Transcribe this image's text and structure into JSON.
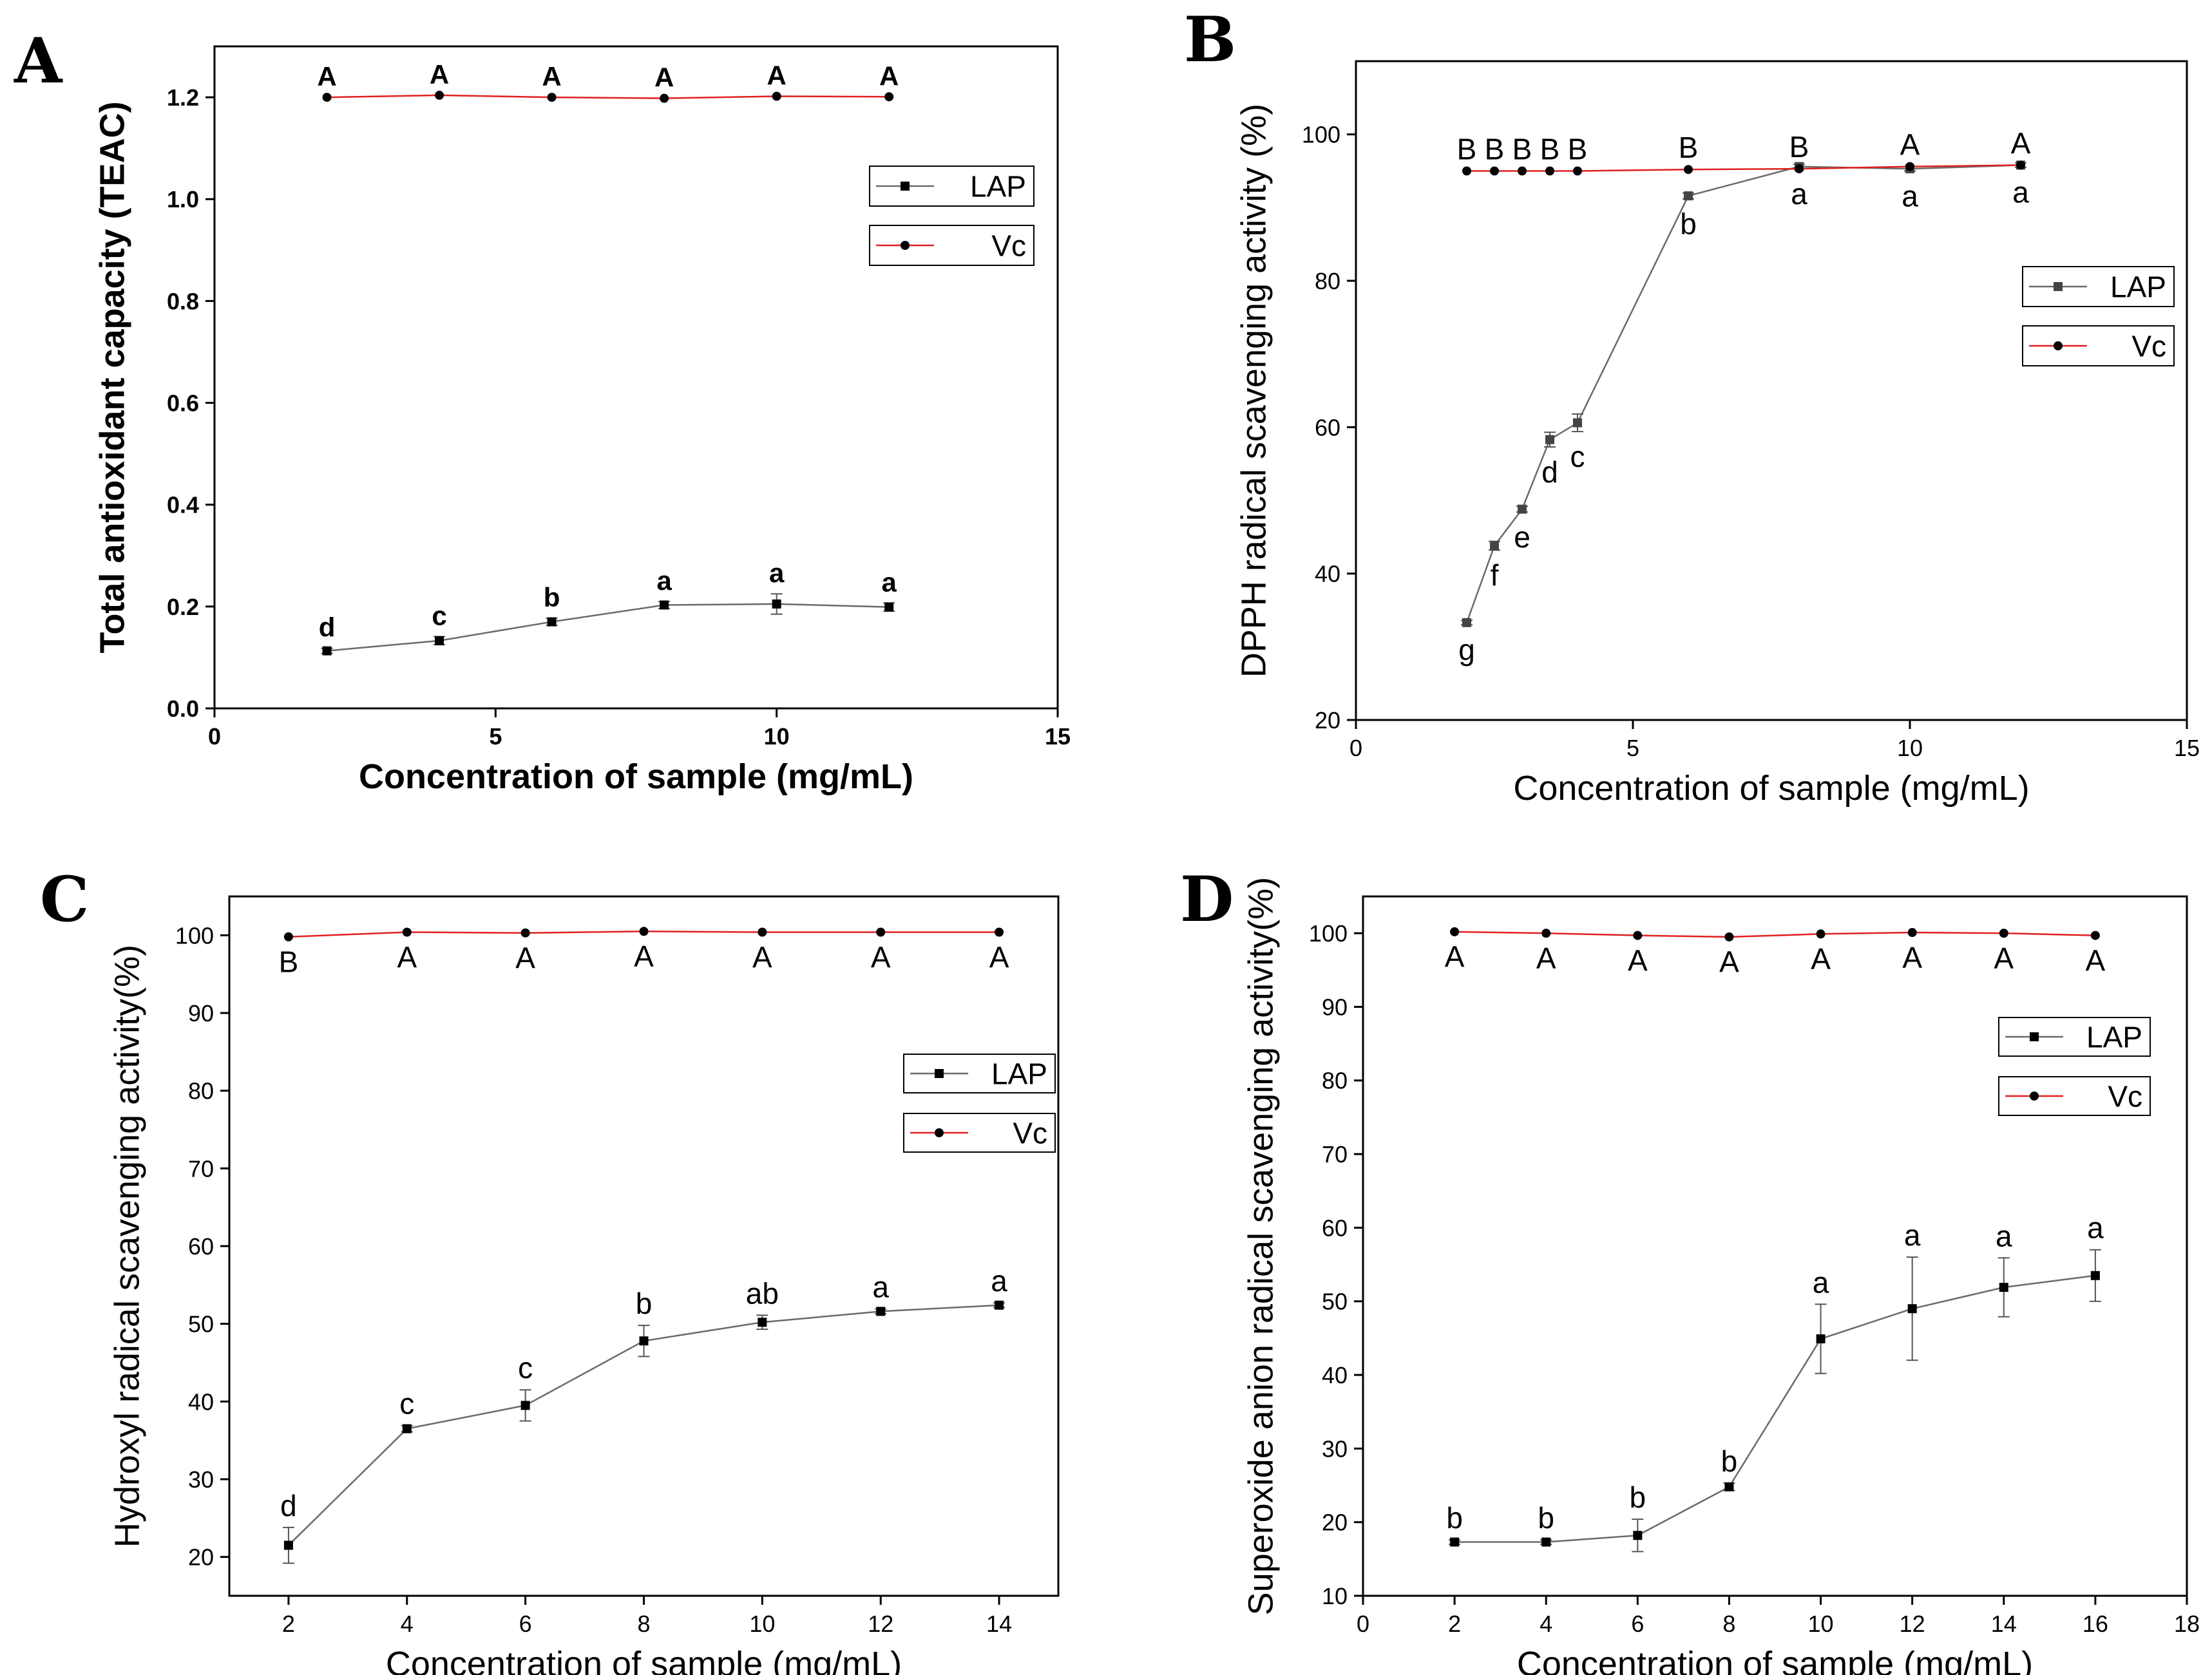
{
  "chart_data": [
    {
      "type": "line",
      "panel_label": "A",
      "xlabel": "Concentration of sample (mg/mL)",
      "ylabel": "Total antioxidant capacity (TEAC)",
      "xlim": [
        0,
        15
      ],
      "ylim": [
        0.0,
        1.3
      ],
      "xticks": [
        0,
        5,
        10,
        15
      ],
      "yticks": [
        0.0,
        0.2,
        0.4,
        0.6,
        0.8,
        1.0,
        1.2
      ],
      "tick_decimals": 1,
      "grid": false,
      "legend_position": "right",
      "bold": true,
      "series": [
        {
          "name": "LAP",
          "marker": "square",
          "color": "#000000",
          "x": [
            2,
            4,
            6,
            8,
            10,
            12
          ],
          "y": [
            0.113,
            0.133,
            0.17,
            0.203,
            0.205,
            0.199
          ],
          "err": [
            0.005,
            0.008,
            0.007,
            0.007,
            0.02,
            0.008
          ],
          "labels": [
            "d",
            "c",
            "b",
            "a",
            "a",
            "a"
          ],
          "label_side": "above"
        },
        {
          "name": "Vc",
          "marker": "circle",
          "color": "#e02020",
          "x": [
            2,
            4,
            6,
            8,
            10,
            12
          ],
          "y": [
            1.2,
            1.204,
            1.2,
            1.198,
            1.202,
            1.201
          ],
          "err": [
            0,
            0,
            0,
            0,
            0,
            0
          ],
          "labels": [
            "A",
            "A",
            "A",
            "A",
            "A",
            "A"
          ],
          "label_side": "above"
        }
      ]
    },
    {
      "type": "line",
      "panel_label": "B",
      "xlabel": "Concentration of sample (mg/mL)",
      "ylabel": "DPPH radical scavenging activity (%)",
      "xlim": [
        0,
        15
      ],
      "ylim": [
        20,
        110
      ],
      "xticks": [
        0,
        5,
        10,
        15
      ],
      "yticks": [
        20,
        40,
        60,
        80,
        100
      ],
      "tick_decimals": 0,
      "grid": false,
      "legend_position": "right",
      "bold": false,
      "series": [
        {
          "name": "LAP",
          "marker": "square",
          "color": "#444444",
          "x": [
            2,
            2.5,
            3,
            3.5,
            4,
            6,
            8,
            10,
            12
          ],
          "y": [
            33.3,
            43.8,
            48.8,
            58.3,
            60.6,
            91.6,
            95.6,
            95.3,
            95.8
          ],
          "err": [
            0.3,
            0.6,
            0.4,
            1.0,
            1.2,
            0.4,
            0.3,
            0.3,
            0.3
          ],
          "labels": [
            "g",
            "f",
            "e",
            "d",
            "c",
            "b",
            "a",
            "a",
            "a"
          ],
          "label_side": "below"
        },
        {
          "name": "Vc",
          "marker": "circle",
          "color": "#e02020",
          "x": [
            2,
            2.5,
            3,
            3.5,
            4,
            6,
            8,
            10,
            12
          ],
          "y": [
            95.0,
            95.0,
            95.0,
            95.0,
            95.0,
            95.2,
            95.3,
            95.6,
            95.8
          ],
          "err": [
            0,
            0,
            0,
            0,
            0,
            0,
            0,
            0,
            0
          ],
          "labels": [
            "B",
            "B",
            "B",
            "B",
            "B",
            "B",
            "B",
            "A",
            "A"
          ],
          "label_side": "above"
        }
      ]
    },
    {
      "type": "line",
      "panel_label": "C",
      "xlabel": "Concentration of sample (mg/mL)",
      "ylabel": "Hydroxyl radical scavenging activity(%)",
      "xlim": [
        1,
        15
      ],
      "ylim": [
        15,
        105
      ],
      "xticks": [
        2,
        4,
        6,
        8,
        10,
        12,
        14
      ],
      "yticks": [
        20,
        30,
        40,
        50,
        60,
        70,
        80,
        90,
        100
      ],
      "tick_decimals": 0,
      "grid": false,
      "legend_position": "right",
      "bold": false,
      "series": [
        {
          "name": "LAP",
          "marker": "square",
          "color": "#000000",
          "x": [
            2,
            4,
            6,
            8,
            10,
            12,
            14
          ],
          "y": [
            21.5,
            36.5,
            39.5,
            47.8,
            50.2,
            51.6,
            52.4
          ],
          "err": [
            2.3,
            0.4,
            2.0,
            2.0,
            0.9,
            0.3,
            0.3
          ],
          "labels": [
            "d",
            "c",
            "c",
            "b",
            "ab",
            "a",
            "a"
          ],
          "label_side": "above"
        },
        {
          "name": "Vc",
          "marker": "circle",
          "color": "#e02020",
          "x": [
            2,
            4,
            6,
            8,
            10,
            12,
            14
          ],
          "y": [
            99.8,
            100.4,
            100.3,
            100.5,
            100.4,
            100.4,
            100.4
          ],
          "err": [
            0,
            0,
            0,
            0,
            0,
            0,
            0
          ],
          "labels": [
            "B",
            "A",
            "A",
            "A",
            "A",
            "A",
            "A"
          ],
          "label_side": "below"
        }
      ]
    },
    {
      "type": "line",
      "panel_label": "D",
      "xlabel": "Concentration of sample (mg/mL)",
      "ylabel": "Superoxide anion radical scavenging activity(%)",
      "xlim": [
        0,
        18
      ],
      "ylim": [
        10,
        105
      ],
      "xticks": [
        0,
        2,
        4,
        6,
        8,
        10,
        12,
        14,
        16,
        18
      ],
      "yticks": [
        10,
        20,
        30,
        40,
        50,
        60,
        70,
        80,
        90,
        100
      ],
      "tick_decimals": 0,
      "grid": false,
      "legend_position": "right",
      "bold": false,
      "series": [
        {
          "name": "LAP",
          "marker": "square",
          "color": "#000000",
          "x": [
            2,
            4,
            6,
            8,
            10,
            12,
            14,
            16
          ],
          "y": [
            17.3,
            17.3,
            18.2,
            24.8,
            44.9,
            49.0,
            51.9,
            53.5
          ],
          "err": [
            0.3,
            0.3,
            2.2,
            0.5,
            4.7,
            7.0,
            4.0,
            3.5
          ],
          "labels": [
            "b",
            "b",
            "b",
            "b",
            "a",
            "a",
            "a",
            "a"
          ],
          "label_side": "above"
        },
        {
          "name": "Vc",
          "marker": "circle",
          "color": "#e02020",
          "x": [
            2,
            4,
            6,
            8,
            10,
            12,
            14,
            16
          ],
          "y": [
            100.2,
            100.0,
            99.7,
            99.5,
            99.9,
            100.1,
            100.0,
            99.7
          ],
          "err": [
            0,
            0,
            0,
            0,
            0,
            0,
            0,
            0
          ],
          "labels": [
            "A",
            "A",
            "A",
            "A",
            "A",
            "A",
            "A",
            "A"
          ],
          "label_side": "below"
        }
      ]
    }
  ]
}
